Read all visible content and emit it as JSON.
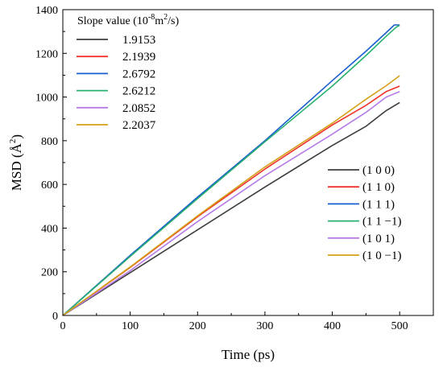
{
  "chart_data": {
    "type": "line",
    "xlabel": "Time (ps)",
    "ylabel_main": "MSD (Å",
    "ylabel_sup": "2",
    "ylabel_close": ")",
    "xlim": [
      0,
      550
    ],
    "ylim": [
      0,
      1400
    ],
    "x_ticks": [
      0,
      100,
      200,
      300,
      400,
      500
    ],
    "y_ticks": [
      0,
      200,
      400,
      600,
      800,
      1000,
      1200,
      1400
    ],
    "x_tick_labels": [
      "0",
      "100",
      "200",
      "300",
      "400",
      "500"
    ],
    "y_tick_labels": [
      "0",
      "200",
      "400",
      "600",
      "800",
      "1000",
      "1200",
      "1400"
    ],
    "grid": false,
    "slope_legend": {
      "title_a": "Slope value (10",
      "title_sup1": "-8",
      "title_b": "m",
      "title_sup2": "2",
      "title_c": "/s)",
      "placement": "top-left"
    },
    "series_legend_placement": "right",
    "series": [
      {
        "name": "(1 0 0)",
        "slope_label": "1.9153",
        "color": "#3d3d3d",
        "x": [
          0,
          100,
          200,
          300,
          400,
          450,
          480,
          500
        ],
        "y": [
          0,
          196,
          392,
          588,
          778,
          866,
          938,
          975
        ]
      },
      {
        "name": "(1 1 0)",
        "slope_label": "2.1939",
        "color": "#f0322a",
        "x": [
          0,
          100,
          200,
          300,
          400,
          450,
          480,
          500
        ],
        "y": [
          0,
          220,
          452,
          670,
          872,
          962,
          1025,
          1050
        ]
      },
      {
        "name": "(1 1 1)",
        "slope_label": "2.6792",
        "color": "#1a5fcf",
        "x": [
          0,
          100,
          200,
          300,
          400,
          450,
          480,
          492,
          500
        ],
        "y": [
          0,
          275,
          542,
          800,
          1075,
          1210,
          1295,
          1330,
          1330
        ]
      },
      {
        "name": "(1 1 −1)",
        "slope_label": "2.6212",
        "color": "#28b070",
        "x": [
          0,
          100,
          200,
          300,
          400,
          450,
          480,
          495,
          500
        ],
        "y": [
          0,
          270,
          535,
          795,
          1050,
          1190,
          1278,
          1320,
          1328
        ]
      },
      {
        "name": "(1 0 1)",
        "slope_label": "2.0852",
        "color": "#b57ae8",
        "x": [
          0,
          100,
          200,
          300,
          400,
          450,
          480,
          500
        ],
        "y": [
          0,
          205,
          430,
          640,
          830,
          930,
          1000,
          1025
        ]
      },
      {
        "name": "(1 0 −1)",
        "slope_label": "2.2037",
        "color": "#d4a017",
        "x": [
          0,
          100,
          200,
          300,
          400,
          450,
          480,
          500
        ],
        "y": [
          0,
          222,
          456,
          680,
          880,
          990,
          1052,
          1098
        ]
      }
    ]
  }
}
